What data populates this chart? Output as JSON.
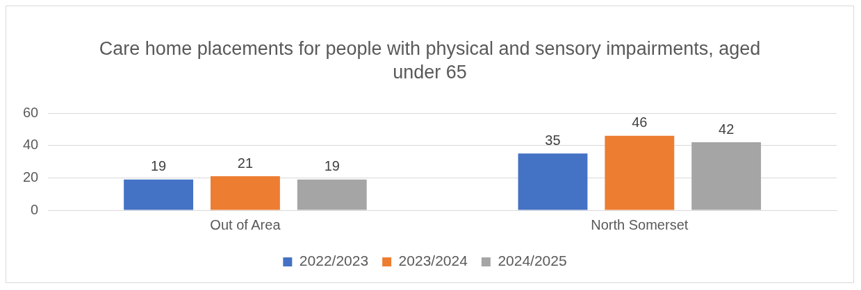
{
  "chart_data": {
    "type": "bar",
    "title": "Care home placements for people with physical and sensory impairments, aged under 65",
    "categories": [
      "Out of Area",
      "North Somerset"
    ],
    "series": [
      {
        "name": "2022/2023",
        "color": "#4472c4",
        "values": [
          19,
          35
        ]
      },
      {
        "name": "2023/2024",
        "color": "#ed7d31",
        "values": [
          21,
          46
        ]
      },
      {
        "name": "2024/2025",
        "color": "#a5a5a5",
        "values": [
          19,
          42
        ]
      }
    ],
    "ylim": [
      0,
      60
    ],
    "yticks": [
      0,
      20,
      40,
      60
    ],
    "grid": "y",
    "legend": "bottom",
    "data_labels": true
  }
}
